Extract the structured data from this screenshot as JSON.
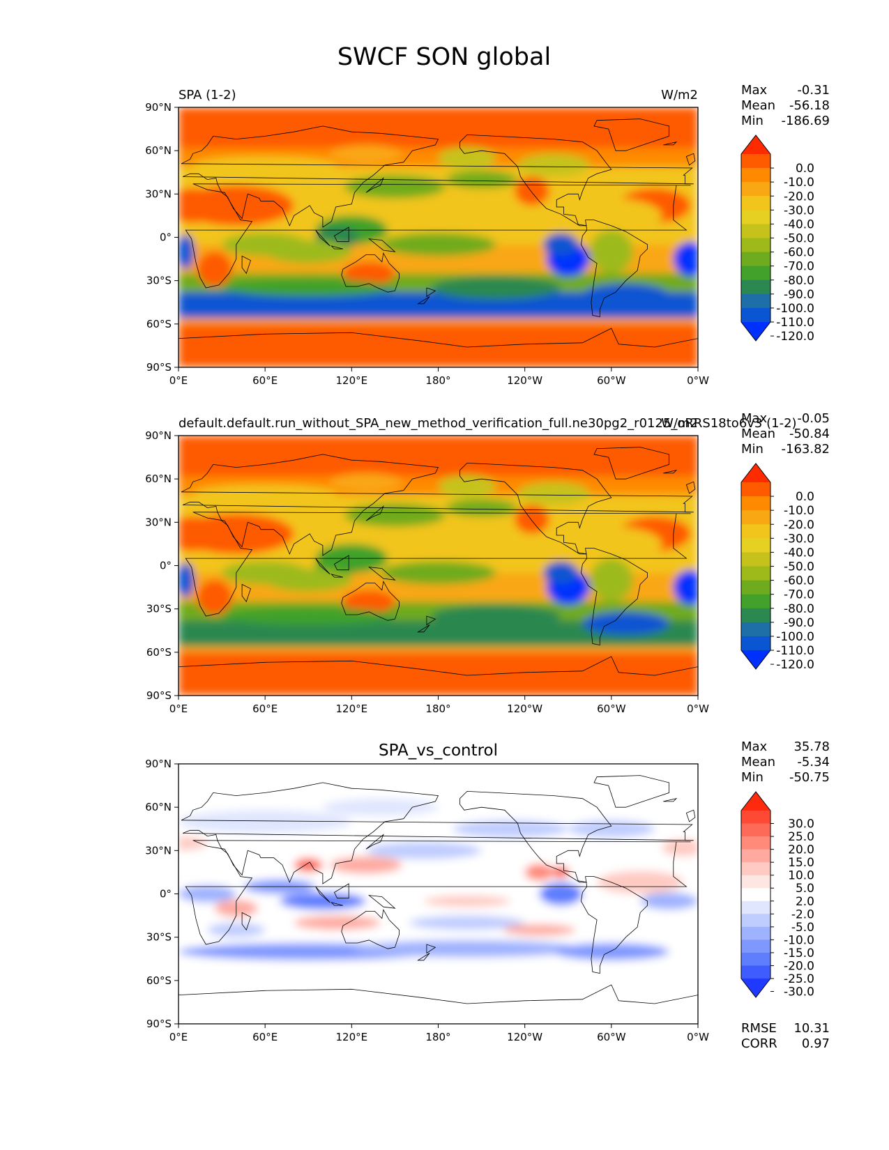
{
  "figure": {
    "title": "SWCF SON global"
  },
  "panels": [
    {
      "id": "test",
      "title_left": "SPA (1-2)",
      "title_right": "W/m2",
      "title_center": "",
      "stats": [
        {
          "label": "Max",
          "value": "-0.31"
        },
        {
          "label": "Mean",
          "value": "-56.18"
        },
        {
          "label": "Min",
          "value": "-186.69"
        }
      ],
      "colorbar": {
        "ticks": [
          "0.0",
          "-10.0",
          "-20.0",
          "-30.0",
          "-40.0",
          "-50.0",
          "-60.0",
          "-70.0",
          "-80.0",
          "-90.0",
          "-100.0",
          "-110.0",
          "-120.0"
        ],
        "colors": [
          "#fe2a00",
          "#fe5a00",
          "#fe8a00",
          "#f9a712",
          "#f2c51c",
          "#e6d022",
          "#c6c21c",
          "#9dba1a",
          "#6fab1e",
          "#41a12a",
          "#2a8850",
          "#1e6fa8",
          "#0a55d2",
          "#0030fe"
        ]
      },
      "extra_stats": []
    },
    {
      "id": "ref",
      "title_left": "default.default.run_without_SPA_new_method_verification_full.ne30pg2_r0125_oRRS18to6v3 (1-2)",
      "title_right": "W/m2",
      "title_center": "",
      "stats": [
        {
          "label": "Max",
          "value": "-0.05"
        },
        {
          "label": "Mean",
          "value": "-50.84"
        },
        {
          "label": "Min",
          "value": "-163.82"
        }
      ],
      "colorbar": {
        "ticks": [
          "0.0",
          "-10.0",
          "-20.0",
          "-30.0",
          "-40.0",
          "-50.0",
          "-60.0",
          "-70.0",
          "-80.0",
          "-90.0",
          "-100.0",
          "-110.0",
          "-120.0"
        ],
        "colors": [
          "#fe2a00",
          "#fe5a00",
          "#fe8a00",
          "#f9a712",
          "#f2c51c",
          "#e6d022",
          "#c6c21c",
          "#9dba1a",
          "#6fab1e",
          "#41a12a",
          "#2a8850",
          "#1e6fa8",
          "#0a55d2",
          "#0030fe"
        ]
      },
      "extra_stats": []
    },
    {
      "id": "diff",
      "title_left": "",
      "title_right": "",
      "title_center": "SPA_vs_control",
      "stats": [
        {
          "label": "Max",
          "value": "35.78"
        },
        {
          "label": "Mean",
          "value": "-5.34"
        },
        {
          "label": "Min",
          "value": "-50.75"
        }
      ],
      "colorbar": {
        "ticks": [
          "30.0",
          "25.0",
          "20.0",
          "15.0",
          "10.0",
          "5.0",
          "2.0",
          "-2.0",
          "-5.0",
          "-10.0",
          "-15.0",
          "-20.0",
          "-25.0",
          "-30.0"
        ],
        "colors": [
          "#fe2a10",
          "#fe4a35",
          "#fe6a58",
          "#fe8a7a",
          "#feaaa0",
          "#fecac2",
          "#fee6e2",
          "#ffffff",
          "#dfe6fe",
          "#bfccfe",
          "#9fb2fe",
          "#7f98fe",
          "#5f7efe",
          "#3f5cfe",
          "#1f3afe"
        ]
      },
      "extra_stats": [
        {
          "label": "RMSE",
          "value": "10.31"
        },
        {
          "label": "CORR",
          "value": "0.97"
        }
      ]
    }
  ],
  "axes": {
    "x_ticks": [
      "0°E",
      "60°E",
      "120°E",
      "180°",
      "120°W",
      "60°W",
      "0°W"
    ],
    "y_ticks": [
      "90°N",
      "60°N",
      "30°N",
      "0°",
      "30°S",
      "60°S",
      "90°S"
    ],
    "xlim": [
      0,
      360
    ],
    "ylim": [
      -90,
      90
    ]
  },
  "chart_data": {
    "type": "heatmap",
    "title": "SWCF SON global",
    "xlim": [
      0,
      360
    ],
    "ylim": [
      -90,
      90
    ],
    "panels": [
      {
        "name": "SPA (1-2)",
        "units": "W/m2",
        "max": -0.31,
        "mean": -56.18,
        "min": -186.69,
        "levels": [
          0,
          -10,
          -20,
          -30,
          -40,
          -50,
          -60,
          -70,
          -80,
          -90,
          -100,
          -110,
          -120
        ]
      },
      {
        "name": "default.default.run_without_SPA_new_method_verification_full.ne30pg2_r0125_oRRS18to6v3 (1-2)",
        "units": "W/m2",
        "max": -0.05,
        "mean": -50.84,
        "min": -163.82,
        "levels": [
          0,
          -10,
          -20,
          -30,
          -40,
          -50,
          -60,
          -70,
          -80,
          -90,
          -100,
          -110,
          -120
        ]
      },
      {
        "name": "SPA_vs_control",
        "max": 35.78,
        "mean": -5.34,
        "min": -50.75,
        "rmse": 10.31,
        "corr": 0.97,
        "levels": [
          30,
          25,
          20,
          15,
          10,
          5,
          2,
          -2,
          -5,
          -10,
          -15,
          -20,
          -25,
          -30
        ]
      }
    ]
  }
}
